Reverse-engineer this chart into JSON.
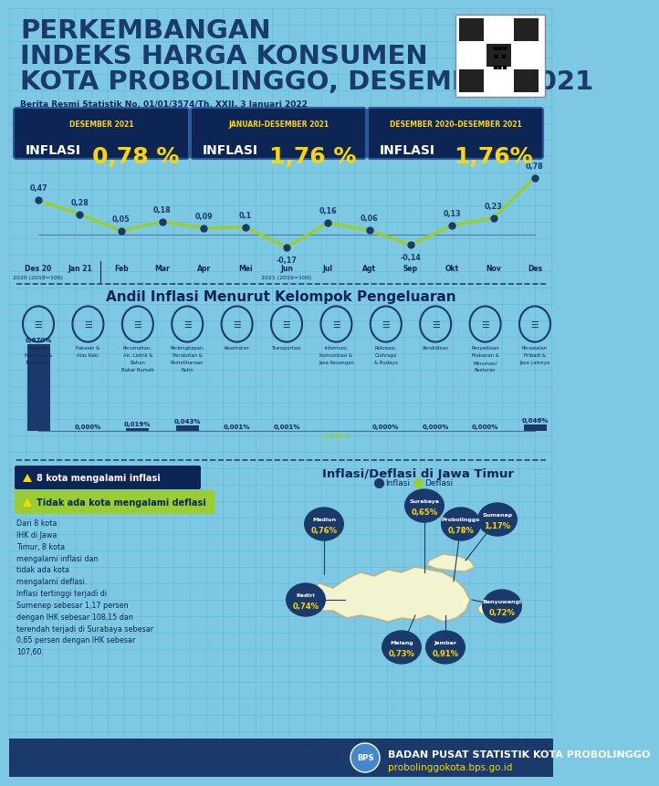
{
  "bg_color": "#7DC8E3",
  "grid_color": "#55AACC",
  "dark_blue": "#1a3a6b",
  "dark_navy": "#0d2555",
  "yellow": "#FFD700",
  "green_line": "#9acd32",
  "title_lines": [
    "PERKEMBANGAN",
    "INDEKS HARGA KONSUMEN",
    "KOTA PROBOLINGGO, DESEMBER 2021"
  ],
  "subtitle": "Berita Resmi Statistik No. 01/01/3574/Th. XXII, 3 Januari 2022",
  "inflasi_boxes": [
    {
      "period": "DESEMBER 2021",
      "label": "INFLASI",
      "value": "0,78 %"
    },
    {
      "period": "JANUARI–DESEMBER 2021",
      "label": "INFLASI",
      "value": "1,76 %"
    },
    {
      "period": "DESEMBER 2020–DESEMBER 2021",
      "label": "INFLASI",
      "value": "1,76%"
    }
  ],
  "line_months": [
    "Des 20",
    "Jan 21",
    "Feb",
    "Mar",
    "Apr",
    "Mei",
    "Jun",
    "Jul",
    "Agt",
    "Sep",
    "Okt",
    "Nov",
    "Des"
  ],
  "line_values": [
    0.47,
    0.28,
    0.05,
    0.18,
    0.09,
    0.1,
    -0.17,
    0.16,
    0.06,
    -0.14,
    0.13,
    0.23,
    0.78
  ],
  "line_labels": [
    "0,47",
    "0,28",
    "0,05",
    "0,18",
    "0,09",
    "0,1",
    "-0,17",
    "0,16",
    "0,06",
    "-0,14",
    "0,13",
    "0,23",
    "0,78"
  ],
  "bar_section_title": "Andil Inflasi Menurut Kelompok Pengeluaran",
  "bar_categories": [
    "Makanan,\nMinuman &\nTembakau",
    "Pakaian &\nAlas Kaki",
    "Perumahan,\nAir, Listrik &\nBahan\nBakar Rumah",
    "Perlengkapan,\nPerabotan &\nPemeliharaan\nRutin",
    "Kesehatan",
    "Transportasi",
    "Informasi,\nKomunikasi &\nJasa Keuangan",
    "Rekreasi,\nOlahraga\n& Budaya",
    "Pendidikan",
    "Penyediaan\nMakanan &\nMinuman/\nRestoran",
    "Perawatan\nPribadi &\nJasa Lainnya"
  ],
  "bar_values": [
    0.67,
    0.0,
    0.019,
    0.043,
    0.001,
    0.001,
    -0.002,
    0.0,
    0.0,
    0.0,
    0.046
  ],
  "bar_labels": [
    "0,670%",
    "0,000%",
    "0,019%",
    "0,043%",
    "0,001%",
    "0,001%",
    "-0,002%",
    "0,000%",
    "0,000%",
    "0,000%",
    "0,046%"
  ],
  "map_title": "Inflasi/Deflasi di Jawa Timur",
  "legend_inflasi": "8 kota mengalami inflasi",
  "legend_deflasi": "Tidak ada kota mengalami deflasi",
  "info_text": "Dari 8 kota\nIHK di Jawa\nTimur, 8 kota\nmengalami inflasi dan\ntidak ada kota\nmengalami deflasi.\nInflasi tertinggi terjadi di\nSumenep sebesar 1,17 persen\ndengan IHK sebesar 108,15 dan\nterendah terjadi di Surabaya sebesar\n0,65 persen dengan IHK sebesar\n107,60.",
  "footer_text": "BADAN PUSAT STATISTIK KOTA PROBOLINGGO",
  "footer_web": "probolinggokota.bps.go.id",
  "map_island_color": "#FFFACD",
  "map_island_edge": "#C8A96E",
  "city_bg": "#1a3a6b",
  "city_name_color": "white",
  "city_val_color": "#FFD700"
}
